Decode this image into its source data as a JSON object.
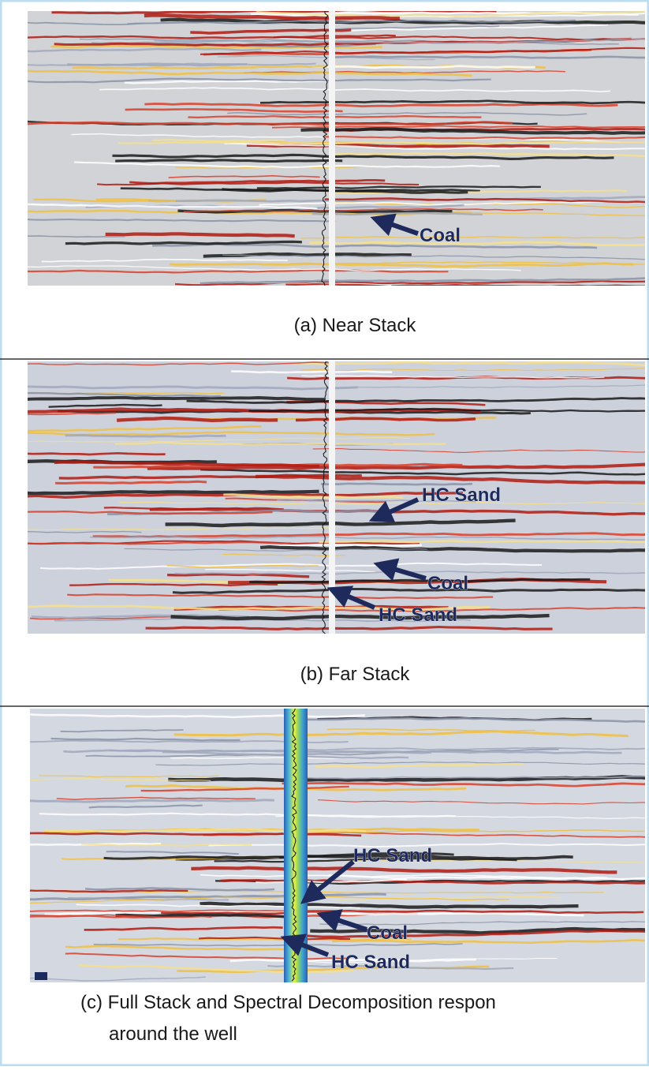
{
  "panels": [
    {
      "caption": "(a)  Near Stack",
      "annotations": [
        "Coal"
      ]
    },
    {
      "caption": "(b)  Far Stack",
      "annotations": [
        "HC Sand",
        "Coal",
        "HC Sand"
      ]
    },
    {
      "caption_lines": [
        "(c)  Full Stack and Spectral Decomposition respon",
        "around the well"
      ],
      "annotations": [
        "HC Sand",
        "Coal",
        "HC Sand"
      ]
    }
  ]
}
